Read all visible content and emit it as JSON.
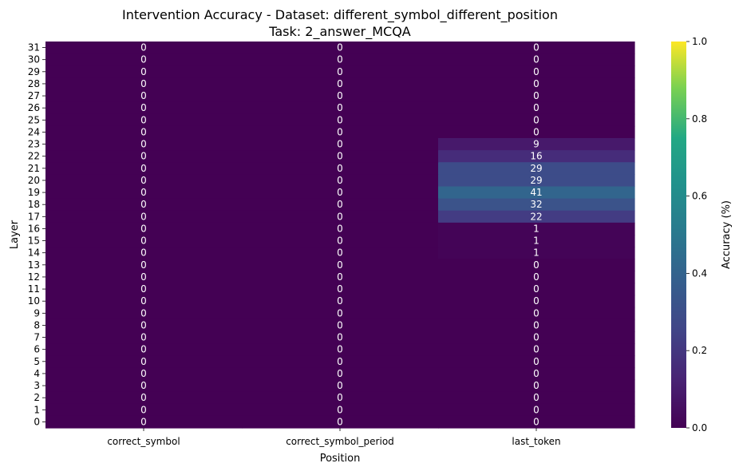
{
  "chart_data": {
    "type": "heatmap",
    "title_line1": "Intervention Accuracy - Dataset: different_symbol_different_position",
    "title_line2": "Task: 2_answer_MCQA",
    "xlabel": "Position",
    "ylabel": "Layer",
    "colorbar_label": "Accuracy (%)",
    "colormap": "viridis",
    "vmin": 0.0,
    "vmax": 1.0,
    "colorbar_ticks": [
      "0.0",
      "0.2",
      "0.4",
      "0.6",
      "0.8",
      "1.0"
    ],
    "columns": [
      "correct_symbol",
      "correct_symbol_period",
      "last_token"
    ],
    "rows": [
      "31",
      "30",
      "29",
      "28",
      "27",
      "26",
      "25",
      "24",
      "23",
      "22",
      "21",
      "20",
      "19",
      "18",
      "17",
      "16",
      "15",
      "14",
      "13",
      "12",
      "11",
      "10",
      "9",
      "8",
      "7",
      "6",
      "5",
      "4",
      "3",
      "2",
      "1",
      "0"
    ],
    "values": [
      [
        0,
        0,
        0
      ],
      [
        0,
        0,
        0
      ],
      [
        0,
        0,
        0
      ],
      [
        0,
        0,
        0
      ],
      [
        0,
        0,
        0
      ],
      [
        0,
        0,
        0
      ],
      [
        0,
        0,
        0
      ],
      [
        0,
        0,
        0
      ],
      [
        0,
        0,
        9
      ],
      [
        0,
        0,
        16
      ],
      [
        0,
        0,
        29
      ],
      [
        0,
        0,
        29
      ],
      [
        0,
        0,
        41
      ],
      [
        0,
        0,
        32
      ],
      [
        0,
        0,
        22
      ],
      [
        0,
        0,
        1
      ],
      [
        0,
        0,
        1
      ],
      [
        0,
        0,
        1
      ],
      [
        0,
        0,
        0
      ],
      [
        0,
        0,
        0
      ],
      [
        0,
        0,
        0
      ],
      [
        0,
        0,
        0
      ],
      [
        0,
        0,
        0
      ],
      [
        0,
        0,
        0
      ],
      [
        0,
        0,
        0
      ],
      [
        0,
        0,
        0
      ],
      [
        0,
        0,
        0
      ],
      [
        0,
        0,
        0
      ],
      [
        0,
        0,
        0
      ],
      [
        0,
        0,
        0
      ],
      [
        0,
        0,
        0
      ],
      [
        0,
        0,
        0
      ]
    ]
  }
}
